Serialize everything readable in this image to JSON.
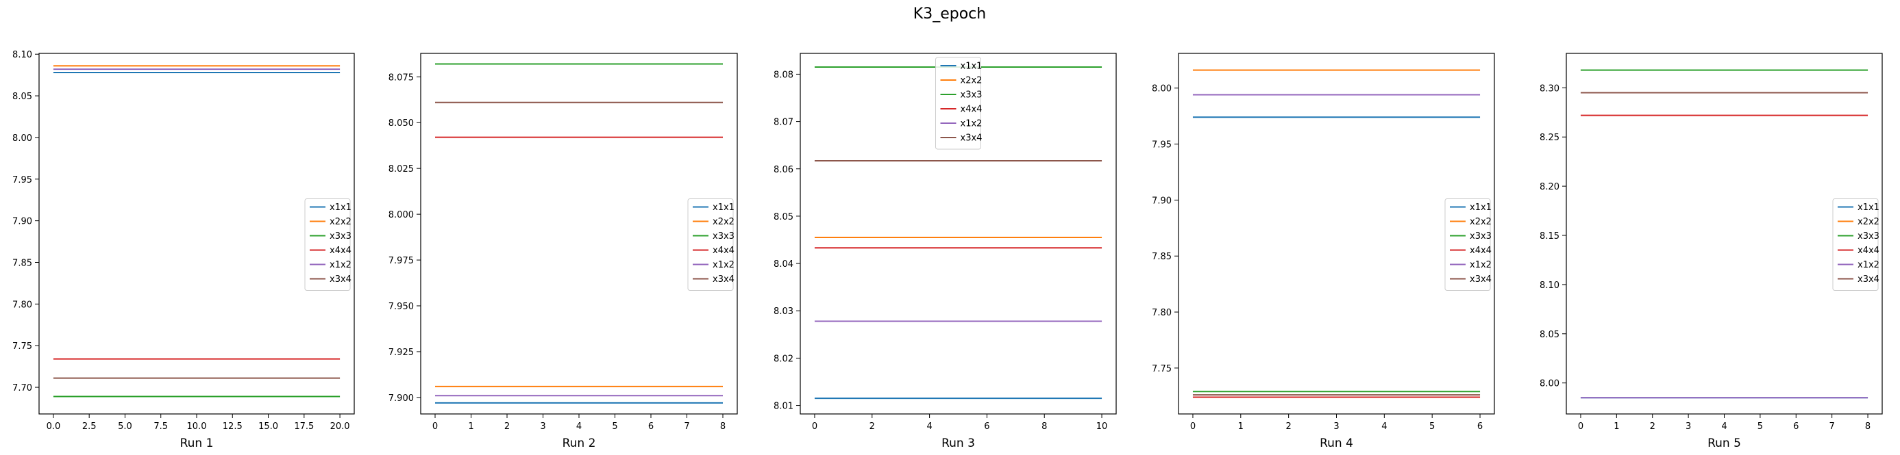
{
  "figure": {
    "title": "K3_epoch"
  },
  "series_colors": {
    "x1x1": "#1f77b4",
    "x2x2": "#ff7f0e",
    "x3x3": "#2ca02c",
    "x4x4": "#d62728",
    "x1x2": "#9467bd",
    "x3x4": "#8c564b"
  },
  "chart_data": [
    {
      "type": "line",
      "xlabel": "Run 1",
      "xlim": [
        -1.0,
        21.0
      ],
      "ylim": [
        7.668,
        8.101
      ],
      "xticks": [
        0.0,
        2.5,
        5.0,
        7.5,
        10.0,
        12.5,
        15.0,
        17.5,
        20.0
      ],
      "xtick_labels": [
        "0.0",
        "2.5",
        "5.0",
        "7.5",
        "10.0",
        "12.5",
        "15.0",
        "17.5",
        "20.0"
      ],
      "yticks": [
        7.7,
        7.75,
        7.8,
        7.85,
        7.9,
        7.95,
        8.0,
        8.05,
        8.1
      ],
      "ytick_labels": [
        "7.70",
        "7.75",
        "7.80",
        "7.85",
        "7.90",
        "7.95",
        "8.00",
        "8.05",
        "8.10"
      ],
      "x": [
        0,
        20
      ],
      "legend": "center-right",
      "series": [
        {
          "name": "x1x1",
          "values": [
            8.078,
            8.078
          ]
        },
        {
          "name": "x2x2",
          "values": [
            8.086,
            8.086
          ]
        },
        {
          "name": "x3x3",
          "values": [
            7.689,
            7.689
          ]
        },
        {
          "name": "x4x4",
          "values": [
            7.734,
            7.734
          ]
        },
        {
          "name": "x1x2",
          "values": [
            8.082,
            8.082
          ]
        },
        {
          "name": "x3x4",
          "values": [
            7.711,
            7.711
          ]
        }
      ]
    },
    {
      "type": "line",
      "xlabel": "Run 2",
      "xlim": [
        -0.4,
        8.4
      ],
      "ylim": [
        7.891,
        8.0878
      ],
      "xticks": [
        0,
        1,
        2,
        3,
        4,
        5,
        6,
        7,
        8
      ],
      "xtick_labels": [
        "0",
        "1",
        "2",
        "3",
        "4",
        "5",
        "6",
        "7",
        "8"
      ],
      "yticks": [
        7.9,
        7.925,
        7.95,
        7.975,
        8.0,
        8.025,
        8.05,
        8.075
      ],
      "ytick_labels": [
        "7.900",
        "7.925",
        "7.950",
        "7.975",
        "8.000",
        "8.025",
        "8.050",
        "8.075"
      ],
      "x": [
        0,
        8
      ],
      "legend": "center-right",
      "series": [
        {
          "name": "x1x1",
          "values": [
            7.897,
            7.897
          ]
        },
        {
          "name": "x2x2",
          "values": [
            7.906,
            7.906
          ]
        },
        {
          "name": "x3x3",
          "values": [
            8.082,
            8.082
          ]
        },
        {
          "name": "x4x4",
          "values": [
            8.042,
            8.042
          ]
        },
        {
          "name": "x1x2",
          "values": [
            7.901,
            7.901
          ]
        },
        {
          "name": "x3x4",
          "values": [
            8.061,
            8.061
          ]
        }
      ]
    },
    {
      "type": "line",
      "xlabel": "Run 3",
      "xlim": [
        -0.5,
        10.5
      ],
      "ylim": [
        8.0082,
        8.0844
      ],
      "xticks": [
        0,
        2,
        4,
        6,
        8,
        10
      ],
      "xtick_labels": [
        "0",
        "2",
        "4",
        "6",
        "8",
        "10"
      ],
      "yticks": [
        8.01,
        8.02,
        8.03,
        8.04,
        8.05,
        8.06,
        8.07,
        8.08
      ],
      "ytick_labels": [
        "8.01",
        "8.02",
        "8.03",
        "8.04",
        "8.05",
        "8.06",
        "8.07",
        "8.08"
      ],
      "x": [
        0,
        10
      ],
      "legend": "upper-center",
      "series": [
        {
          "name": "x1x1",
          "values": [
            8.0115,
            8.0115
          ]
        },
        {
          "name": "x2x2",
          "values": [
            8.0455,
            8.0455
          ]
        },
        {
          "name": "x3x3",
          "values": [
            8.0815,
            8.0815
          ]
        },
        {
          "name": "x4x4",
          "values": [
            8.0433,
            8.0433
          ]
        },
        {
          "name": "x1x2",
          "values": [
            8.0278,
            8.0278
          ]
        },
        {
          "name": "x3x4",
          "values": [
            8.0617,
            8.0617
          ]
        }
      ]
    },
    {
      "type": "line",
      "xlabel": "Run 4",
      "xlim": [
        -0.3,
        6.3
      ],
      "ylim": [
        7.709,
        8.031
      ],
      "xticks": [
        0,
        1,
        2,
        3,
        4,
        5,
        6
      ],
      "xtick_labels": [
        "0",
        "1",
        "2",
        "3",
        "4",
        "5",
        "6"
      ],
      "yticks": [
        7.75,
        7.8,
        7.85,
        7.9,
        7.95,
        8.0
      ],
      "ytick_labels": [
        "7.75",
        "7.80",
        "7.85",
        "7.90",
        "7.95",
        "8.00"
      ],
      "x": [
        0,
        6
      ],
      "legend": "center-right",
      "series": [
        {
          "name": "x1x1",
          "values": [
            7.974,
            7.974
          ]
        },
        {
          "name": "x2x2",
          "values": [
            8.016,
            8.016
          ]
        },
        {
          "name": "x3x3",
          "values": [
            7.729,
            7.729
          ]
        },
        {
          "name": "x4x4",
          "values": [
            7.724,
            7.724
          ]
        },
        {
          "name": "x1x2",
          "values": [
            7.994,
            7.994
          ]
        },
        {
          "name": "x3x4",
          "values": [
            7.726,
            7.726
          ]
        }
      ]
    },
    {
      "type": "line",
      "xlabel": "Run 5",
      "xlim": [
        -0.4,
        8.4
      ],
      "ylim": [
        7.9685,
        8.335
      ],
      "xticks": [
        0,
        1,
        2,
        3,
        4,
        5,
        6,
        7,
        8
      ],
      "xtick_labels": [
        "0",
        "1",
        "2",
        "3",
        "4",
        "5",
        "6",
        "7",
        "8"
      ],
      "yticks": [
        8.0,
        8.05,
        8.1,
        8.15,
        8.2,
        8.25,
        8.3
      ],
      "ytick_labels": [
        "8.00",
        "8.05",
        "8.10",
        "8.15",
        "8.20",
        "8.25",
        "8.30"
      ],
      "x": [
        0,
        8
      ],
      "legend": "center-right",
      "series": [
        {
          "name": "x1x1",
          "values": [
            7.985,
            7.985
          ]
        },
        {
          "name": "x2x2",
          "values": [
            8.318,
            8.318
          ]
        },
        {
          "name": "x3x3",
          "values": [
            8.318,
            8.318
          ]
        },
        {
          "name": "x4x4",
          "values": [
            8.272,
            8.272
          ]
        },
        {
          "name": "x1x2",
          "values": [
            7.985,
            7.985
          ]
        },
        {
          "name": "x3x4",
          "values": [
            8.295,
            8.295
          ]
        }
      ]
    }
  ]
}
